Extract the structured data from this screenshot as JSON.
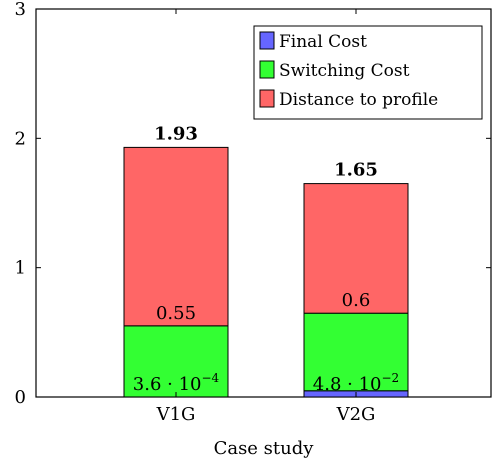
{
  "chart_data": {
    "type": "bar",
    "stacked": true,
    "categories": [
      "V1G",
      "V2G"
    ],
    "series": [
      {
        "name": "Final Cost",
        "color": "#6666ff",
        "values": [
          0.00036,
          0.048
        ],
        "labels": [
          [
            "3.6 · 10",
            "−4"
          ],
          [
            "4.8 · 10",
            "−2"
          ]
        ]
      },
      {
        "name": "Switching Cost",
        "color": "#33ff33",
        "values": [
          0.55,
          0.6
        ],
        "labels": [
          "0.55",
          "0.6"
        ]
      },
      {
        "name": "Distance to profile",
        "color": "#ff6666",
        "values": [
          1.37964,
          1.002
        ],
        "labels": [
          "",
          ""
        ]
      }
    ],
    "totals": [
      1.93,
      1.65
    ],
    "total_labels": [
      "1.93",
      "1.65"
    ],
    "xlabel": "Case study",
    "ylabel": "",
    "ylim": [
      0,
      3
    ],
    "yticks": [
      0,
      1,
      2,
      3
    ],
    "legend_position": "top-right",
    "grid": false
  }
}
